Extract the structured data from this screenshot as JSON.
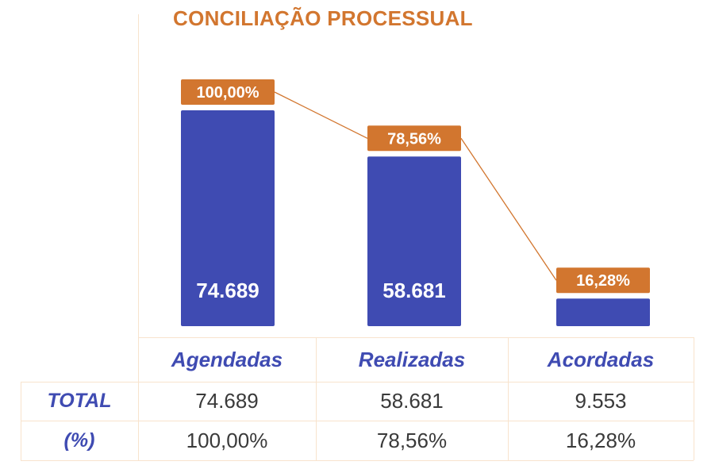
{
  "chart_data": {
    "type": "bar",
    "title": "CONCILIAÇÃO PROCESSUAL",
    "categories": [
      "Agendadas",
      "Realizadas",
      "Acordadas"
    ],
    "values": [
      74689,
      58681,
      9553
    ],
    "value_labels": [
      "74.689",
      "58.681",
      "9.553"
    ],
    "percent_line": {
      "values": [
        100.0,
        78.56,
        16.28
      ],
      "labels": [
        "100,00%",
        "78,56%",
        "16,28%"
      ]
    },
    "bar_color": "#3f4bb2",
    "line_color": "#d2762f",
    "table": {
      "row_labels": [
        "TOTAL",
        "(%)"
      ],
      "rows": [
        [
          "74.689",
          "58.681",
          "9.553"
        ],
        [
          "100,00%",
          "78,56%",
          "16,28%"
        ]
      ]
    }
  }
}
